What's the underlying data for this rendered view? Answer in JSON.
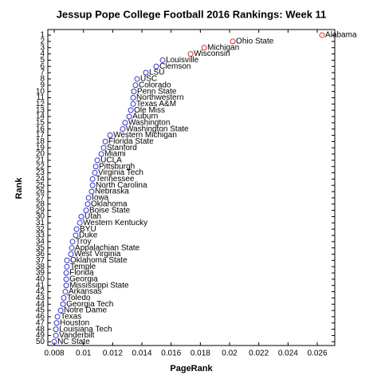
{
  "chart_data": {
    "type": "scatter",
    "title": "Jessup Pope College Football 2016 Rankings: Week 11",
    "x_label": "PageRank",
    "y_label": "Rank",
    "labels": [
      "Alabama",
      "Ohio State",
      "Michigan",
      "Wisconsin",
      "Louisville",
      "Clemson",
      "LSU",
      "USC",
      "Colorado",
      "Penn State",
      "Northwestern",
      "Texas A&M",
      "Ole Miss",
      "Auburn",
      "Washington",
      "Washington State",
      "Western Michigan",
      "Florida State",
      "Stanford",
      "Miami",
      "UCLA",
      "Pittsburgh",
      "Virginia Tech",
      "Tennessee",
      "North Carolina",
      "Nebraska",
      "Iowa",
      "Oklahoma",
      "Boise State",
      "Utah",
      "Western Kentucky",
      "BYU",
      "Duke",
      "Troy",
      "Appalachian State",
      "West Virginia",
      "Oklahoma State",
      "Temple",
      "Florida",
      "Georgia",
      "Mississippi State",
      "Arkansas",
      "Toledo",
      "Georgia Tech",
      "Notre Dame",
      "Texas",
      "Houston",
      "Louisiana Tech",
      "Vanderbilt",
      "NC State"
    ],
    "x": [
      0.02633,
      0.02022,
      0.01826,
      0.01733,
      0.01542,
      0.01498,
      0.01427,
      0.01367,
      0.01356,
      0.01345,
      0.0134,
      0.0134,
      0.01324,
      0.01313,
      0.01285,
      0.01269,
      0.01182,
      0.01149,
      0.01138,
      0.01122,
      0.01095,
      0.01084,
      0.01078,
      0.01062,
      0.01062,
      0.01056,
      0.01035,
      0.01029,
      0.01018,
      0.00985,
      0.00975,
      0.00953,
      0.00947,
      0.00925,
      0.0092,
      0.00914,
      0.00887,
      0.00887,
      0.00882,
      0.00882,
      0.00882,
      0.00876,
      0.00865,
      0.0086,
      0.00844,
      0.00822,
      0.00816,
      0.00811,
      0.00811,
      0.008
    ],
    "y": [
      1,
      2,
      3,
      4,
      5,
      6,
      7,
      8,
      9,
      10,
      11,
      12,
      13,
      14,
      15,
      16,
      17,
      18,
      19,
      20,
      21,
      22,
      23,
      24,
      25,
      26,
      27,
      28,
      29,
      30,
      31,
      32,
      33,
      34,
      35,
      36,
      37,
      38,
      39,
      40,
      41,
      42,
      43,
      44,
      45,
      46,
      47,
      48,
      49,
      50
    ],
    "colors": [
      "#e03030",
      "#e03030",
      "#e03030",
      "#e03030",
      "#3333cc",
      "#3333cc",
      "#3333cc",
      "#3333cc",
      "#3333cc",
      "#3333cc",
      "#3333cc",
      "#3333cc",
      "#3333cc",
      "#3333cc",
      "#3333cc",
      "#3333cc",
      "#3333cc",
      "#3333cc",
      "#3333cc",
      "#3333cc",
      "#3333cc",
      "#3333cc",
      "#3333cc",
      "#3333cc",
      "#3333cc",
      "#3333cc",
      "#3333cc",
      "#3333cc",
      "#3333cc",
      "#3333cc",
      "#3333cc",
      "#3333cc",
      "#3333cc",
      "#3333cc",
      "#3333cc",
      "#3333cc",
      "#3333cc",
      "#3333cc",
      "#3333cc",
      "#3333cc",
      "#3333cc",
      "#3333cc",
      "#3333cc",
      "#3333cc",
      "#3333cc",
      "#3333cc",
      "#3333cc",
      "#3333cc",
      "#3333cc",
      "#3333cc"
    ],
    "xlim": [
      0.00756,
      0.0272
    ],
    "ylim": [
      50.6,
      0.1
    ],
    "xticks": [
      0.008,
      0.01,
      0.012,
      0.014,
      0.016,
      0.018,
      0.02,
      0.022,
      0.024,
      0.026
    ],
    "yticks": [
      1,
      2,
      3,
      4,
      5,
      6,
      7,
      8,
      9,
      10,
      11,
      12,
      13,
      14,
      15,
      16,
      17,
      18,
      19,
      20,
      21,
      22,
      23,
      24,
      25,
      26,
      27,
      28,
      29,
      30,
      31,
      32,
      33,
      34,
      35,
      36,
      37,
      38,
      39,
      40,
      41,
      42,
      43,
      44,
      45,
      46,
      47,
      48,
      49,
      50
    ]
  }
}
